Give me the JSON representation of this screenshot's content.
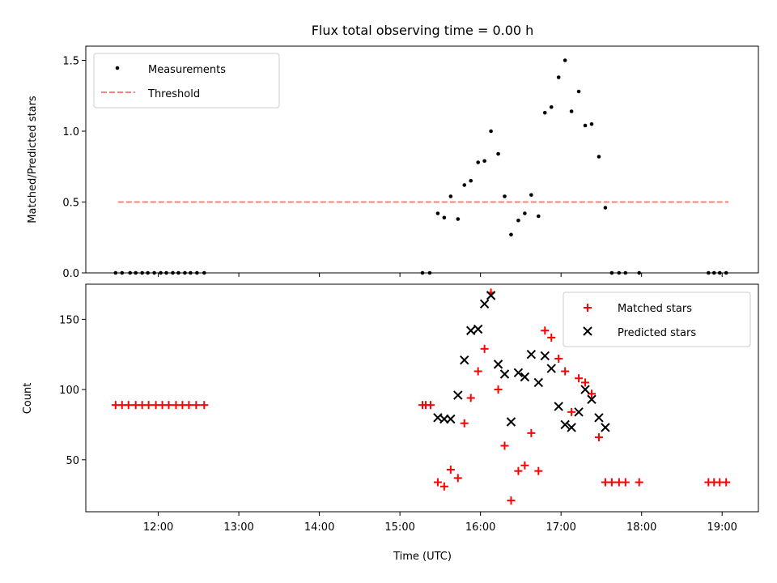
{
  "chart_data": [
    {
      "type": "scatter",
      "title": "Flux total observing time = 0.00 h",
      "xlabel": "",
      "ylabel": "Matched/Predicted stars",
      "x_axis": "time (UTC, hours)",
      "xlim": [
        11.1,
        19.45
      ],
      "ylim": [
        0,
        1.6
      ],
      "y_ticks": [
        0.0,
        0.5,
        1.0,
        1.5
      ],
      "y_tick_labels": [
        "0.0",
        "0.5",
        "1.0",
        "1.5"
      ],
      "legend": {
        "placement": "top-left",
        "entries": [
          "Measurements",
          "Threshold"
        ]
      },
      "series": [
        {
          "name": "Measurements",
          "marker": "dot",
          "color": "#000000",
          "points": [
            [
              11.47,
              0.0
            ],
            [
              11.55,
              0.0
            ],
            [
              11.65,
              0.0
            ],
            [
              11.72,
              0.0
            ],
            [
              11.8,
              0.0
            ],
            [
              11.87,
              0.0
            ],
            [
              11.95,
              0.0
            ],
            [
              12.03,
              0.0
            ],
            [
              12.1,
              0.0
            ],
            [
              12.18,
              0.0
            ],
            [
              12.25,
              0.0
            ],
            [
              12.33,
              0.0
            ],
            [
              12.4,
              0.0
            ],
            [
              12.48,
              0.0
            ],
            [
              12.57,
              0.0
            ],
            [
              15.28,
              0.0
            ],
            [
              15.37,
              0.0
            ],
            [
              15.47,
              0.42
            ],
            [
              15.55,
              0.39
            ],
            [
              15.63,
              0.54
            ],
            [
              15.72,
              0.38
            ],
            [
              15.8,
              0.62
            ],
            [
              15.88,
              0.65
            ],
            [
              15.97,
              0.78
            ],
            [
              16.05,
              0.79
            ],
            [
              16.13,
              1.0
            ],
            [
              16.22,
              0.84
            ],
            [
              16.3,
              0.54
            ],
            [
              16.38,
              0.27
            ],
            [
              16.47,
              0.37
            ],
            [
              16.55,
              0.42
            ],
            [
              16.63,
              0.55
            ],
            [
              16.72,
              0.4
            ],
            [
              16.8,
              1.13
            ],
            [
              16.88,
              1.17
            ],
            [
              16.97,
              1.38
            ],
            [
              17.05,
              1.5
            ],
            [
              17.13,
              1.14
            ],
            [
              17.22,
              1.28
            ],
            [
              17.3,
              1.04
            ],
            [
              17.38,
              1.05
            ],
            [
              17.47,
              0.82
            ],
            [
              17.55,
              0.46
            ],
            [
              17.63,
              0.0
            ],
            [
              17.72,
              0.0
            ],
            [
              17.8,
              0.0
            ],
            [
              17.97,
              0.0
            ],
            [
              18.83,
              0.0
            ],
            [
              18.9,
              0.0
            ],
            [
              18.97,
              0.0
            ],
            [
              19.05,
              0.0
            ]
          ]
        },
        {
          "name": "Threshold",
          "style": "dashed",
          "color": "#ff7f7f",
          "points": [
            [
              11.5,
              0.5
            ],
            [
              19.08,
              0.5
            ]
          ]
        }
      ]
    },
    {
      "type": "scatter",
      "title": "",
      "xlabel": "Time (UTC)",
      "ylabel": "Count",
      "x_axis": "time (UTC, hours)",
      "xlim": [
        11.1,
        19.45
      ],
      "ylim": [
        13,
        175
      ],
      "x_ticks": [
        12,
        13,
        14,
        15,
        16,
        17,
        18,
        19
      ],
      "x_tick_labels": [
        "12:00",
        "13:00",
        "14:00",
        "15:00",
        "16:00",
        "17:00",
        "18:00",
        "19:00"
      ],
      "y_ticks": [
        50,
        100,
        150
      ],
      "y_tick_labels": [
        "50",
        "100",
        "150"
      ],
      "legend": {
        "placement": "top-right",
        "entries": [
          "Matched stars",
          "Predicted stars"
        ]
      },
      "series": [
        {
          "name": "Matched stars",
          "marker": "plus",
          "color": "#ff0000",
          "points": [
            [
              11.47,
              89
            ],
            [
              11.55,
              89
            ],
            [
              11.63,
              89
            ],
            [
              11.72,
              89
            ],
            [
              11.8,
              89
            ],
            [
              11.88,
              89
            ],
            [
              11.97,
              89
            ],
            [
              12.05,
              89
            ],
            [
              12.13,
              89
            ],
            [
              12.22,
              89
            ],
            [
              12.3,
              89
            ],
            [
              12.38,
              89
            ],
            [
              12.47,
              89
            ],
            [
              12.57,
              89
            ],
            [
              15.28,
              89
            ],
            [
              15.32,
              89
            ],
            [
              15.38,
              89
            ],
            [
              15.47,
              34
            ],
            [
              15.55,
              31
            ],
            [
              15.63,
              43
            ],
            [
              15.72,
              37
            ],
            [
              15.8,
              76
            ],
            [
              15.88,
              94
            ],
            [
              15.97,
              113
            ],
            [
              16.05,
              129
            ],
            [
              16.13,
              169
            ],
            [
              16.22,
              100
            ],
            [
              16.3,
              60
            ],
            [
              16.38,
              21
            ],
            [
              16.47,
              42
            ],
            [
              16.55,
              46
            ],
            [
              16.63,
              69
            ],
            [
              16.72,
              42
            ],
            [
              16.8,
              142
            ],
            [
              16.88,
              137
            ],
            [
              16.97,
              122
            ],
            [
              17.05,
              113
            ],
            [
              17.13,
              84
            ],
            [
              17.22,
              108
            ],
            [
              17.3,
              105
            ],
            [
              17.38,
              97
            ],
            [
              17.47,
              66
            ],
            [
              17.55,
              34
            ],
            [
              17.63,
              34
            ],
            [
              17.72,
              34
            ],
            [
              17.8,
              34
            ],
            [
              17.97,
              34
            ],
            [
              18.83,
              34
            ],
            [
              18.9,
              34
            ],
            [
              18.97,
              34
            ],
            [
              19.05,
              34
            ]
          ]
        },
        {
          "name": "Predicted stars",
          "marker": "x",
          "color": "#000000",
          "points": [
            [
              15.47,
              80
            ],
            [
              15.55,
              79
            ],
            [
              15.63,
              79
            ],
            [
              15.72,
              96
            ],
            [
              15.8,
              121
            ],
            [
              15.88,
              142
            ],
            [
              15.97,
              143
            ],
            [
              16.05,
              161
            ],
            [
              16.13,
              167
            ],
            [
              16.22,
              118
            ],
            [
              16.3,
              111
            ],
            [
              16.38,
              77
            ],
            [
              16.47,
              112
            ],
            [
              16.55,
              109
            ],
            [
              16.63,
              125
            ],
            [
              16.72,
              105
            ],
            [
              16.8,
              124
            ],
            [
              16.88,
              115
            ],
            [
              16.97,
              88
            ],
            [
              17.05,
              75
            ],
            [
              17.13,
              73
            ],
            [
              17.22,
              84
            ],
            [
              17.3,
              100
            ],
            [
              17.38,
              93
            ],
            [
              17.47,
              80
            ],
            [
              17.55,
              73
            ]
          ]
        }
      ]
    }
  ]
}
